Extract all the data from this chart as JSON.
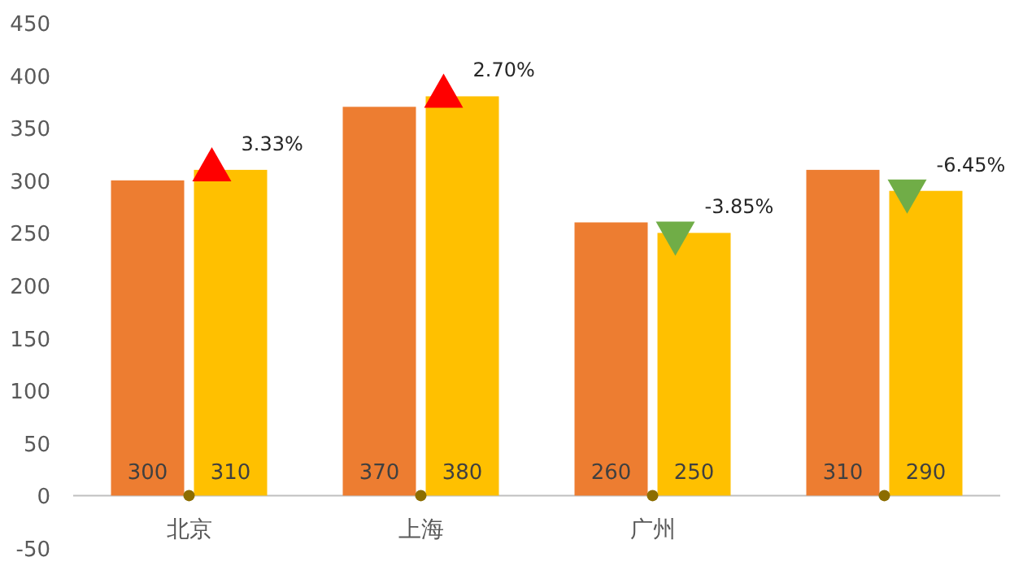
{
  "chart_data": {
    "type": "bar",
    "categories": [
      "北京",
      "上海",
      "广州",
      null
    ],
    "ylim": [
      -50,
      450
    ],
    "yticks": [
      -50,
      0,
      50,
      100,
      150,
      200,
      250,
      300,
      350,
      400,
      450
    ],
    "grid": false,
    "annotations": [
      "3.33%",
      "2.70%",
      "-3.85%",
      "-6.45%"
    ],
    "series": [
      {
        "color": "#ed7d31",
        "values": [
          300,
          370,
          260,
          310
        ],
        "value_labels": [
          "300",
          "370",
          "260",
          "310"
        ]
      },
      {
        "color": "#ffc000",
        "values": [
          310,
          380,
          250,
          290
        ],
        "value_labels": [
          "310",
          "380",
          "250",
          "290"
        ]
      },
      {
        "type": "scatter",
        "marker": "triangle",
        "color": "#ff0000",
        "values": [
          310,
          380,
          null,
          null
        ]
      },
      {
        "type": "scatter",
        "marker": "triangle-down",
        "color": "#70ad47",
        "values": [
          null,
          null,
          250,
          290
        ]
      },
      {
        "type": "scatter",
        "marker": "circle",
        "color": "#8c6d00",
        "values": [
          0,
          0,
          0,
          0
        ]
      }
    ]
  }
}
